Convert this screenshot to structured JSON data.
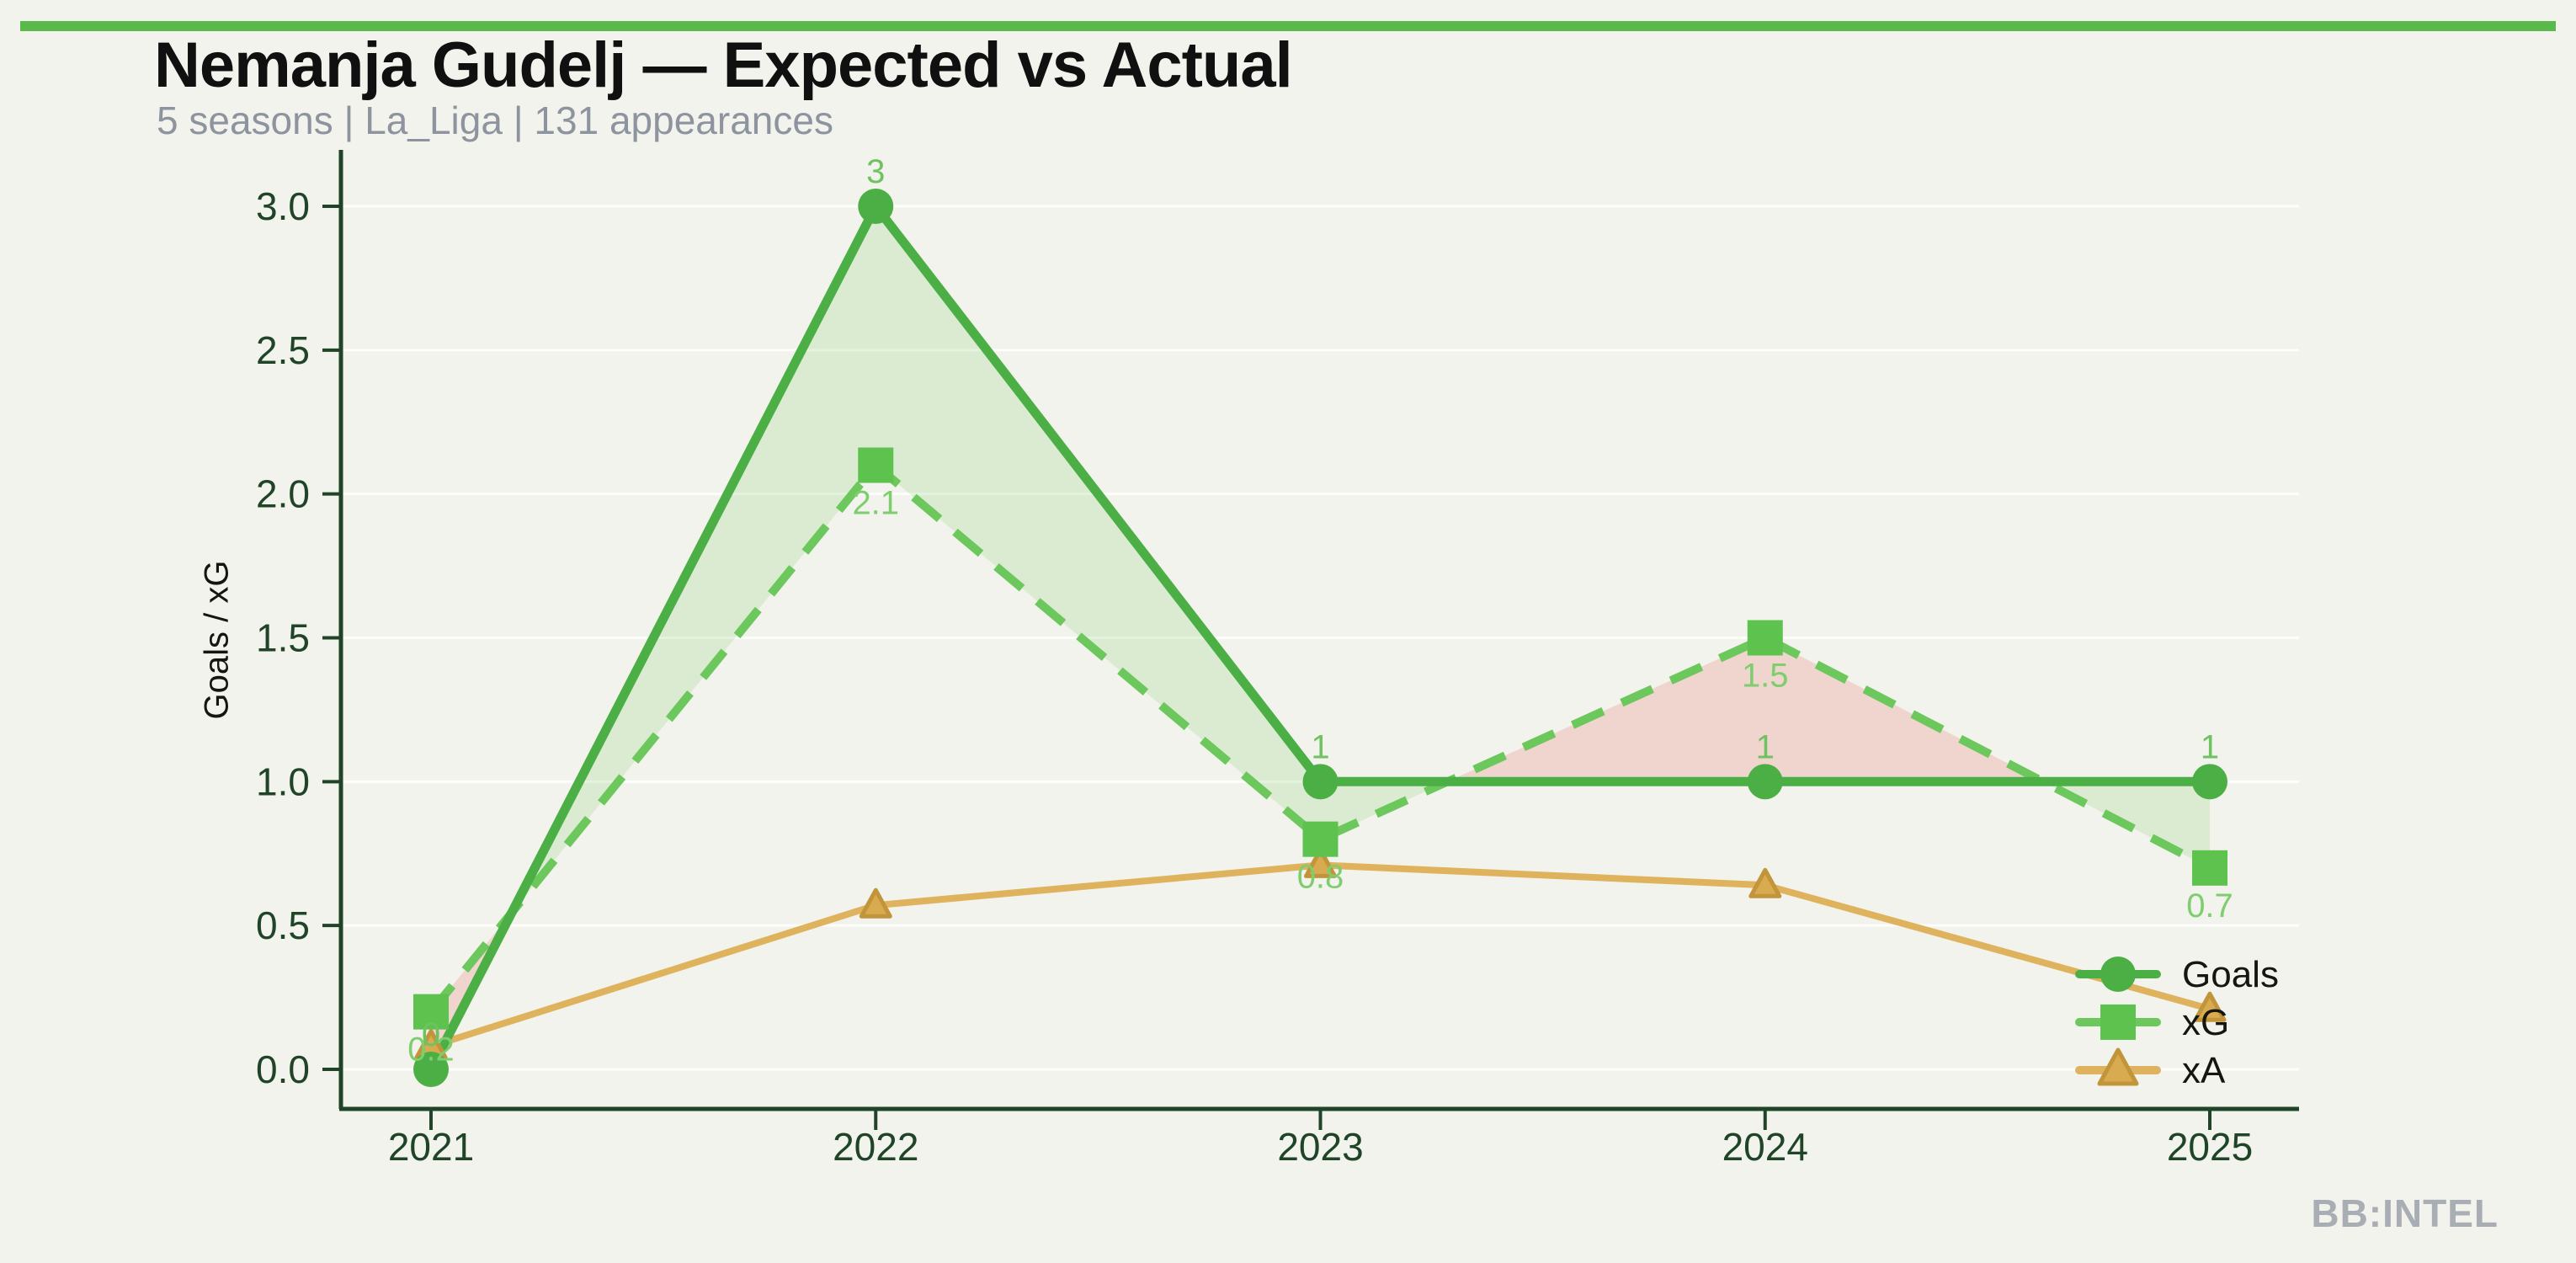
{
  "header": {
    "title": "Nemanja Gudelj — Expected vs Actual",
    "subtitle": "5 seasons | La_Liga | 131 appearances"
  },
  "footer": {
    "watermark": "BB:INTEL"
  },
  "colors": {
    "background": "#f2f3ec",
    "accent_bar": "#59b94a",
    "title": "#101010",
    "subtitle_gray": "#8e949f",
    "watermark_gray": "#a9adb4",
    "axis_dark_green": "#1f4427",
    "goals_green": "#4caf45",
    "goals_label_green": "#6ec260",
    "xg_green": "#6cc85c",
    "xg_marker_green": "#5ec24e",
    "xg_label_green": "#7ecd6e",
    "xa_tan": "#dfb35e",
    "xa_marker_fill": "#d9ab50",
    "xa_marker_edge": "#c3953a",
    "fill_overperform": "rgba(110,200,90,0.18)",
    "fill_underperform": "rgba(226,110,100,0.22)",
    "gridline": "rgba(255,255,255,0.8)"
  },
  "chart_data": {
    "type": "line",
    "title": "Nemanja Gudelj — Expected vs Actual",
    "subtitle": "5 seasons | La_Liga | 131 appearances",
    "x_categories": [
      "2021",
      "2022",
      "2023",
      "2024",
      "2025"
    ],
    "series": [
      {
        "name": "Goals",
        "marker": "circle",
        "line_style": "solid",
        "values": [
          0,
          3,
          1,
          1,
          1
        ],
        "point_labels": [
          "0",
          "3",
          "1",
          "1",
          "1"
        ],
        "label_position": "above"
      },
      {
        "name": "xG",
        "marker": "square",
        "line_style": "dashed",
        "values": [
          0.2,
          2.1,
          0.8,
          1.5,
          0.7
        ],
        "point_labels": [
          "0.2",
          "2.1",
          "0.8",
          "1.5",
          "0.7"
        ],
        "label_position": "below"
      },
      {
        "name": "xA",
        "marker": "triangle",
        "line_style": "solid",
        "values": [
          0.08,
          0.57,
          0.71,
          0.64,
          0.21
        ],
        "point_labels": []
      }
    ],
    "ylabel": "Goals / xG",
    "xlabel": "",
    "ylim": [
      0,
      3
    ],
    "yticks": [
      0,
      0.5,
      1,
      1.5,
      2,
      2.5,
      3
    ],
    "ytick_labels": [
      "0.0",
      "0.5",
      "1.0",
      "1.5",
      "2.0",
      "2.5",
      "3.0"
    ],
    "grid": "faint horizontal lines",
    "legend": {
      "position": "lower right",
      "entries": [
        "Goals",
        "xG",
        "xA"
      ]
    },
    "fill_between": "green shading where Goals > xG, red shading where xG > Goals"
  }
}
